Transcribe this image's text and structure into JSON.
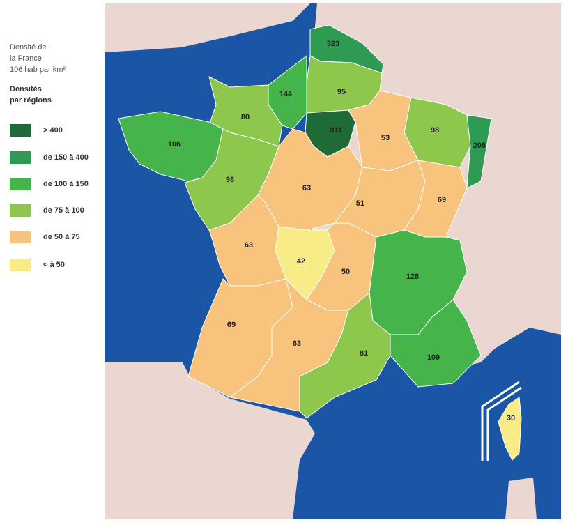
{
  "header": {
    "lines": [
      "Densité de",
      "la France",
      "106 hab par km²"
    ]
  },
  "legend": {
    "title": [
      "Densités",
      "par régions"
    ],
    "items": [
      {
        "label": "> 400",
        "color": "#1e6b38"
      },
      {
        "label": "de 150 à 400",
        "color": "#2f9a52"
      },
      {
        "label": "de 100 à 150",
        "color": "#45b54b"
      },
      {
        "label": "de 75 à 100",
        "color": "#8dc84c"
      },
      {
        "label": "de 50 à 75",
        "color": "#f8c37c"
      },
      {
        "label": "< à 50",
        "color": "#f7ec86"
      }
    ]
  },
  "regions": [
    {
      "label": 323,
      "color": "#2f9a52"
    },
    {
      "label": 95,
      "color": "#8dc84c"
    },
    {
      "label": 144,
      "color": "#45b54b"
    },
    {
      "label": 80,
      "color": "#8dc84c"
    },
    {
      "label": 106,
      "color": "#45b54b"
    },
    {
      "label": 911,
      "color": "#1e6b38"
    },
    {
      "label": 53,
      "color": "#f8c37c"
    },
    {
      "label": 98,
      "color": "#8dc84c"
    },
    {
      "label": 205,
      "color": "#2f9a52"
    },
    {
      "label": 98,
      "color": "#8dc84c"
    },
    {
      "label": 63,
      "color": "#f8c37c"
    },
    {
      "label": 51,
      "color": "#f8c37c"
    },
    {
      "label": 69,
      "color": "#f8c37c"
    },
    {
      "label": 63,
      "color": "#f8c37c"
    },
    {
      "label": 42,
      "color": "#f7ec86"
    },
    {
      "label": 50,
      "color": "#f8c37c"
    },
    {
      "label": 128,
      "color": "#45b54b"
    },
    {
      "label": 69,
      "color": "#f8c37c"
    },
    {
      "label": 63,
      "color": "#f8c37c"
    },
    {
      "label": 81,
      "color": "#8dc84c"
    },
    {
      "label": 109,
      "color": "#45b54b"
    },
    {
      "label": 30,
      "color": "#f7ec86"
    }
  ]
}
